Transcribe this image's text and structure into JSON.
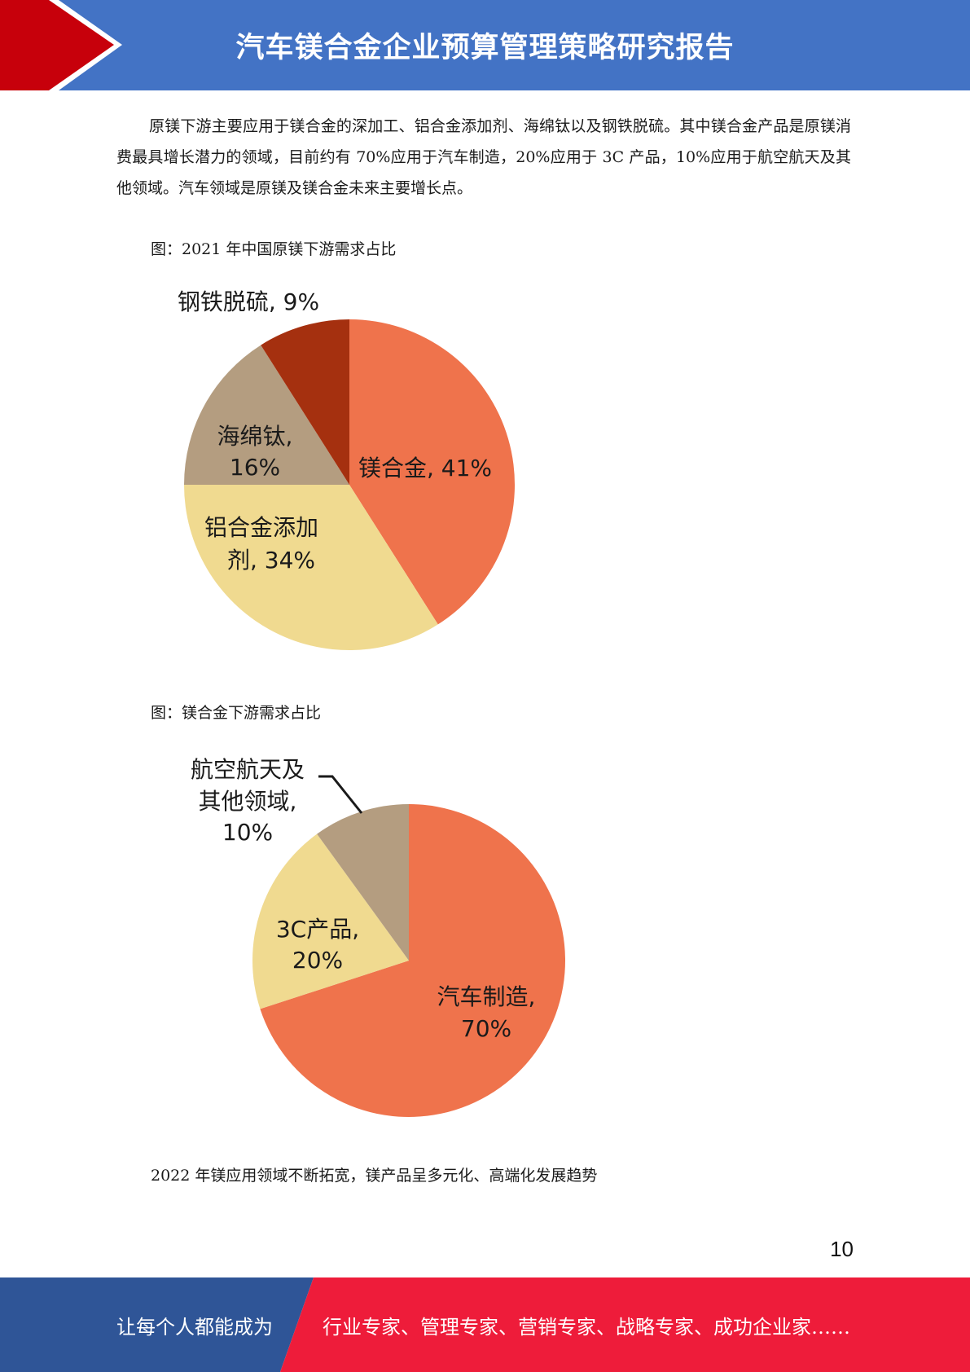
{
  "header": {
    "title": "汽车镁合金企业预算管理策略研究报告",
    "colors": {
      "banner": "#4373c5",
      "chevron": "#c7000b"
    }
  },
  "body": {
    "paragraph": "原镁下游主要应用于镁合金的深加工、铝合金添加剂、海绵钛以及钢铁脱硫。其中镁合金产品是原镁消费最具增长潜力的领域，目前约有 70%应用于汽车制造，20%应用于 3C 产品，10%应用于航空航天及其他领域。汽车领域是原镁及镁合金未来主要增长点。",
    "caption_1": "图：2021 年中国原镁下游需求占比",
    "caption_2": "图：镁合金下游需求占比",
    "closing": "2022 年镁应用领域不断拓宽，镁产品呈多元化、高端化发展趋势"
  },
  "chart_data": [
    {
      "type": "pie",
      "title": "",
      "slices": [
        {
          "label_line1": "镁合金, 41%",
          "label_line2": "",
          "name": "镁合金",
          "value": 41,
          "color": "#ef734c"
        },
        {
          "label_line1": "铝合金添加",
          "label_line2": "剂, 34%",
          "name": "铝合金添加剂",
          "value": 34,
          "color": "#f0da90"
        },
        {
          "label_line1": "海绵钛,",
          "label_line2": "16%",
          "name": "海绵钛",
          "value": 16,
          "color": "#b49d80"
        },
        {
          "label_line1": "钢铁脱硫, 9%",
          "label_line2": "",
          "name": "钢铁脱硫",
          "value": 9,
          "color": "#a5300f"
        }
      ]
    },
    {
      "type": "pie",
      "title": "",
      "slices": [
        {
          "label_line1": "汽车制造,",
          "label_line2": "70%",
          "label_line3": "",
          "name": "汽车制造",
          "value": 70,
          "color": "#ef734c"
        },
        {
          "label_line1": "3C产品,",
          "label_line2": "20%",
          "label_line3": "",
          "name": "3C产品",
          "value": 20,
          "color": "#f0da90"
        },
        {
          "label_line1": "航空航天及",
          "label_line2": "其他领域,",
          "label_line3": "10%",
          "name": "航空航天及其他领域",
          "value": 10,
          "color": "#b49d80"
        }
      ]
    }
  ],
  "page": {
    "number": "10"
  },
  "footer": {
    "left": "让每个人都能成为",
    "right": "行业专家、管理专家、营销专家、战略专家、成功企业家……",
    "colors": {
      "left": "#2f5597",
      "right": "#ee1c3a"
    }
  }
}
